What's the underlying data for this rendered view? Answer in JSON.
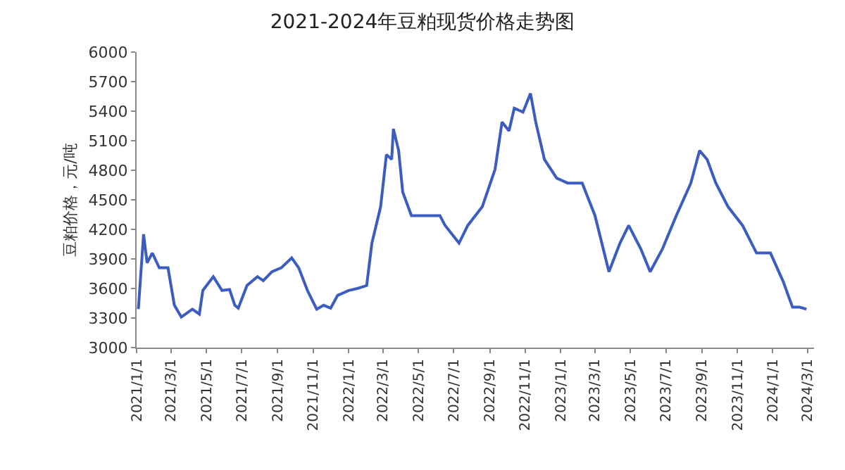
{
  "chart_data": {
    "type": "line",
    "title": "2021-2024年豆粕现货价格走势图",
    "ylabel": "豆粕价格，元/吨",
    "x": [
      "2021-01-04",
      "2021-01-13",
      "2021-01-19",
      "2021-01-28",
      "2021-02-09",
      "2021-02-24",
      "2021-03-07",
      "2021-03-19",
      "2021-04-07",
      "2021-04-19",
      "2021-04-25",
      "2021-05-13",
      "2021-05-28",
      "2021-06-10",
      "2021-06-19",
      "2021-06-25",
      "2021-07-10",
      "2021-07-28",
      "2021-08-07",
      "2021-08-22",
      "2021-09-07",
      "2021-09-25",
      "2021-10-07",
      "2021-10-22",
      "2021-11-07",
      "2021-11-19",
      "2021-12-01",
      "2021-12-13",
      "2022-01-01",
      "2022-01-16",
      "2022-02-01",
      "2022-02-10",
      "2022-02-25",
      "2022-03-07",
      "2022-03-16",
      "2022-03-19",
      "2022-03-28",
      "2022-04-04",
      "2022-04-19",
      "2022-05-13",
      "2022-06-07",
      "2022-06-16",
      "2022-07-10",
      "2022-07-25",
      "2022-08-19",
      "2022-09-10",
      "2022-09-22",
      "2022-10-04",
      "2022-10-13",
      "2022-10-28",
      "2022-11-10",
      "2022-11-19",
      "2022-12-04",
      "2022-12-25",
      "2023-01-13",
      "2023-02-07",
      "2023-03-01",
      "2023-03-25",
      "2023-04-13",
      "2023-04-28",
      "2023-05-19",
      "2023-06-04",
      "2023-06-25",
      "2023-07-19",
      "2023-08-13",
      "2023-08-28",
      "2023-09-10",
      "2023-09-25",
      "2023-10-16",
      "2023-11-10",
      "2023-12-04",
      "2023-12-28",
      "2024-01-19",
      "2024-02-04",
      "2024-02-16",
      "2024-02-28"
    ],
    "series": [
      {
        "color": "#3b5cc0",
        "values": [
          3390,
          4150,
          3860,
          3960,
          3810,
          3810,
          3430,
          3310,
          3390,
          3340,
          3580,
          3720,
          3580,
          3590,
          3430,
          3400,
          3630,
          3720,
          3680,
          3770,
          3810,
          3910,
          3810,
          3580,
          3390,
          3430,
          3400,
          3530,
          3580,
          3600,
          3630,
          4060,
          4430,
          4960,
          4910,
          5220,
          5000,
          4580,
          4340,
          4340,
          4340,
          4240,
          4060,
          4240,
          4430,
          4810,
          5290,
          5200,
          5430,
          5390,
          5580,
          5290,
          4910,
          4720,
          4670,
          4670,
          4340,
          3770,
          4060,
          4240,
          4000,
          3770,
          4000,
          4340,
          4670,
          5000,
          4910,
          4670,
          4430,
          4240,
          3960,
          3960,
          3670,
          3410,
          3410,
          3390
        ]
      }
    ],
    "xlim": [
      "2021-01-01",
      "2024-03-12"
    ],
    "xticks": [
      {
        "value": "2021-01-01",
        "label": "2021/1/1"
      },
      {
        "value": "2021-03-01",
        "label": "2021/3/1"
      },
      {
        "value": "2021-05-01",
        "label": "2021/5/1"
      },
      {
        "value": "2021-07-01",
        "label": "2021/7/1"
      },
      {
        "value": "2021-09-01",
        "label": "2021/9/1"
      },
      {
        "value": "2021-11-01",
        "label": "2021/11/1"
      },
      {
        "value": "2022-01-01",
        "label": "2022/1/1"
      },
      {
        "value": "2022-03-01",
        "label": "2022/3/1"
      },
      {
        "value": "2022-05-01",
        "label": "2022/5/1"
      },
      {
        "value": "2022-07-01",
        "label": "2022/7/1"
      },
      {
        "value": "2022-09-01",
        "label": "2022/9/1"
      },
      {
        "value": "2022-11-01",
        "label": "2022/11/1"
      },
      {
        "value": "2023-01-01",
        "label": "2023/1/1"
      },
      {
        "value": "2023-03-01",
        "label": "2023/3/1"
      },
      {
        "value": "2023-05-01",
        "label": "2023/5/1"
      },
      {
        "value": "2023-07-01",
        "label": "2023/7/1"
      },
      {
        "value": "2023-09-01",
        "label": "2023/9/1"
      },
      {
        "value": "2023-11-01",
        "label": "2023/11/1"
      },
      {
        "value": "2024-01-01",
        "label": "2024/1/1"
      },
      {
        "value": "2024-03-01",
        "label": "2024/3/1"
      }
    ],
    "ylim": [
      3000,
      6000
    ],
    "yticks": [
      3000,
      3300,
      3600,
      3900,
      4200,
      4500,
      4800,
      5100,
      5400,
      5700,
      6000
    ],
    "grid": false,
    "marker": "none",
    "line_style": "solid"
  }
}
